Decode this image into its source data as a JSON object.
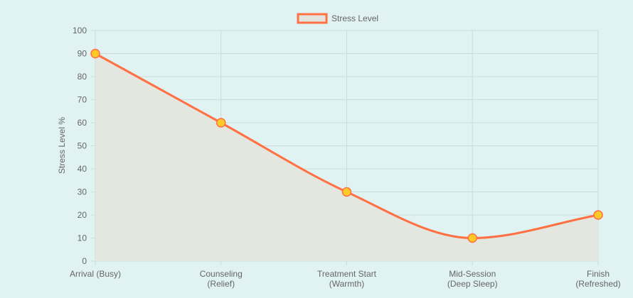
{
  "chart_data": {
    "type": "area",
    "categories": [
      [
        "Arrival (Busy)"
      ],
      [
        "Counseling",
        "(Relief)"
      ],
      [
        "Treatment Start",
        "(Warmth)"
      ],
      [
        "Mid-Session",
        "(Deep Sleep)"
      ],
      [
        "Finish",
        "(Refreshed)"
      ]
    ],
    "series": [
      {
        "name": "Stress Level",
        "values": [
          90,
          60,
          30,
          10,
          20
        ]
      }
    ],
    "ylabel": "Stress Level %",
    "xlabel": "",
    "ylim": [
      0,
      100
    ],
    "yticks": [
      0,
      10,
      20,
      30,
      40,
      50,
      60,
      70,
      80,
      90,
      100
    ],
    "grid": true,
    "legend": "top",
    "colors": {
      "line": "#ff7043",
      "fill": "#e4e4de",
      "point_fill": "#ffca28",
      "point_stroke": "#ff7043",
      "grid": "#c9dedc",
      "text": "#666666",
      "background": "#e0f2f1"
    }
  }
}
